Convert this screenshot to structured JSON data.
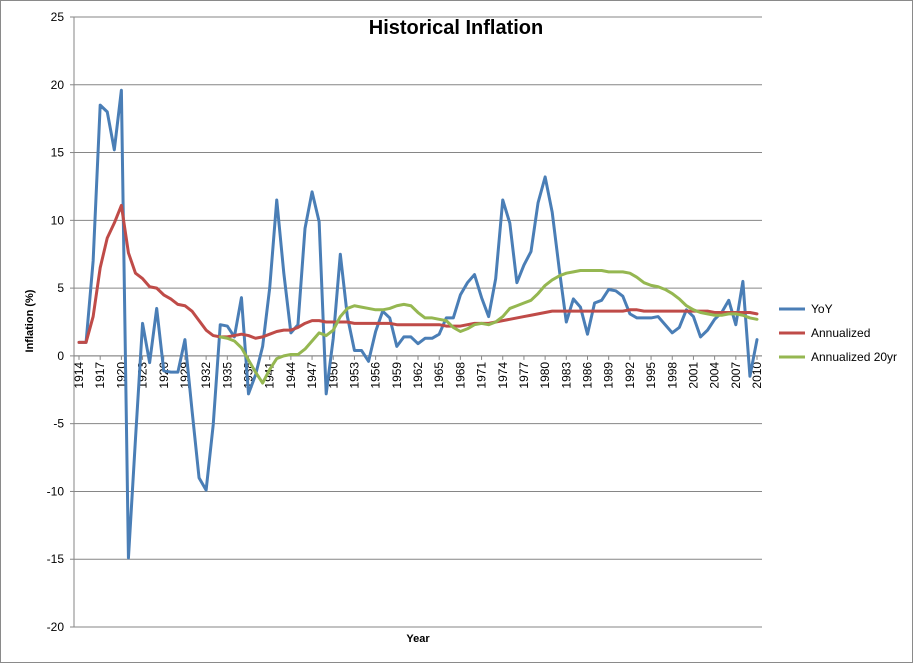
{
  "chart_data": {
    "type": "line",
    "title": "Historical Inflation",
    "xlabel": "Year",
    "ylabel": "Inflation (%)",
    "ylim": [
      -20,
      25
    ],
    "yticks": [
      -20,
      -15,
      -10,
      -5,
      0,
      5,
      10,
      15,
      20,
      25
    ],
    "grid": "horizontal",
    "legend_position": "right",
    "x": [
      1914,
      1915,
      1916,
      1917,
      1918,
      1919,
      1920,
      1921,
      1922,
      1923,
      1924,
      1925,
      1926,
      1927,
      1928,
      1929,
      1930,
      1931,
      1932,
      1933,
      1934,
      1935,
      1936,
      1937,
      1938,
      1939,
      1940,
      1941,
      1942,
      1943,
      1944,
      1945,
      1946,
      1947,
      1948,
      1949,
      1950,
      1951,
      1952,
      1953,
      1954,
      1955,
      1956,
      1957,
      1958,
      1959,
      1960,
      1961,
      1962,
      1963,
      1964,
      1965,
      1966,
      1967,
      1968,
      1969,
      1970,
      1971,
      1972,
      1973,
      1974,
      1975,
      1976,
      1977,
      1978,
      1979,
      1980,
      1981,
      1982,
      1983,
      1984,
      1985,
      1986,
      1987,
      1988,
      1989,
      1990,
      1991,
      1992,
      1993,
      1994,
      1995,
      1996,
      1997,
      1998,
      1999,
      2000,
      2001,
      2002,
      2003,
      2004,
      2005,
      2006,
      2007,
      2008,
      2009,
      2010
    ],
    "xtick_labels": [
      "1914",
      "1917",
      "1920",
      "1923",
      "1926",
      "1929",
      "1932",
      "1935",
      "1938",
      "1941",
      "1944",
      "1947",
      "1950",
      "1953",
      "1956",
      "1959",
      "1962",
      "1965",
      "1968",
      "1971",
      "1974",
      "1977",
      "1980",
      "1983",
      "1986",
      "1989",
      "1992",
      "1995",
      "1998",
      "2001",
      "2004",
      "2007",
      "2010"
    ],
    "series": [
      {
        "name": "YoY",
        "color": "#4a7eb6",
        "values": [
          1.0,
          1.0,
          7.0,
          18.5,
          18.0,
          15.2,
          19.6,
          -14.9,
          -6.1,
          2.4,
          -0.5,
          3.5,
          -1.1,
          -1.2,
          -1.2,
          1.2,
          -4.0,
          -9.0,
          -9.9,
          -5.1,
          2.3,
          2.2,
          1.4,
          4.3,
          -2.8,
          -1.4,
          0.7,
          5.0,
          11.5,
          6.1,
          1.7,
          2.3,
          9.4,
          12.1,
          9.9,
          -2.8,
          1.3,
          7.5,
          2.9,
          0.4,
          0.4,
          -0.4,
          1.8,
          3.3,
          2.8,
          0.7,
          1.4,
          1.4,
          0.9,
          1.3,
          1.3,
          1.6,
          2.8,
          2.8,
          4.5,
          5.4,
          6.0,
          4.3,
          2.9,
          5.7,
          11.5,
          9.8,
          5.4,
          6.7,
          7.7,
          11.3,
          13.2,
          10.6,
          6.4,
          2.5,
          4.2,
          3.6,
          1.6,
          3.9,
          4.1,
          4.9,
          4.8,
          4.4,
          3.1,
          2.8,
          2.8,
          2.8,
          2.9,
          2.3,
          1.7,
          2.1,
          3.4,
          2.9,
          1.4,
          1.9,
          2.7,
          3.2,
          4.1,
          2.3,
          5.5,
          -1.5,
          1.2
        ]
      },
      {
        "name": "Annualized",
        "color": "#bf4b48",
        "values": [
          1.0,
          1.0,
          2.9,
          6.5,
          8.7,
          9.8,
          11.1,
          7.6,
          6.1,
          5.7,
          5.1,
          5.0,
          4.5,
          4.2,
          3.8,
          3.7,
          3.3,
          2.6,
          1.9,
          1.5,
          1.4,
          1.4,
          1.5,
          1.6,
          1.5,
          1.3,
          1.4,
          1.6,
          1.8,
          1.9,
          1.9,
          2.1,
          2.4,
          2.6,
          2.6,
          2.5,
          2.5,
          2.5,
          2.5,
          2.4,
          2.4,
          2.4,
          2.4,
          2.4,
          2.4,
          2.3,
          2.3,
          2.3,
          2.3,
          2.3,
          2.3,
          2.3,
          2.2,
          2.2,
          2.2,
          2.3,
          2.4,
          2.4,
          2.4,
          2.5,
          2.6,
          2.7,
          2.8,
          2.9,
          3.0,
          3.1,
          3.2,
          3.3,
          3.3,
          3.3,
          3.3,
          3.3,
          3.3,
          3.3,
          3.3,
          3.3,
          3.3,
          3.3,
          3.4,
          3.4,
          3.3,
          3.3,
          3.3,
          3.3,
          3.3,
          3.3,
          3.3,
          3.3,
          3.3,
          3.3,
          3.2,
          3.2,
          3.2,
          3.2,
          3.2,
          3.2,
          3.1
        ]
      },
      {
        "name": "Annualized 20yr",
        "color": "#95b751",
        "values": [
          null,
          null,
          null,
          null,
          null,
          null,
          null,
          null,
          null,
          null,
          null,
          null,
          null,
          null,
          null,
          null,
          null,
          null,
          null,
          null,
          1.4,
          1.3,
          1.1,
          0.6,
          -0.3,
          -1.2,
          -2.0,
          -1.0,
          -0.2,
          0.0,
          0.1,
          0.1,
          0.5,
          1.1,
          1.7,
          1.5,
          1.9,
          2.9,
          3.5,
          3.7,
          3.6,
          3.5,
          3.4,
          3.4,
          3.5,
          3.7,
          3.8,
          3.7,
          3.2,
          2.8,
          2.8,
          2.7,
          2.6,
          2.1,
          1.8,
          2.0,
          2.3,
          2.4,
          2.3,
          2.5,
          2.9,
          3.5,
          3.7,
          3.9,
          4.1,
          4.6,
          5.2,
          5.6,
          5.9,
          6.1,
          6.2,
          6.3,
          6.3,
          6.3,
          6.3,
          6.2,
          6.2,
          6.2,
          6.1,
          5.8,
          5.4,
          5.2,
          5.1,
          4.9,
          4.6,
          4.2,
          3.7,
          3.4,
          3.2,
          3.1,
          3.0,
          3.0,
          3.1,
          3.1,
          3.0,
          2.8,
          2.7
        ]
      }
    ]
  }
}
